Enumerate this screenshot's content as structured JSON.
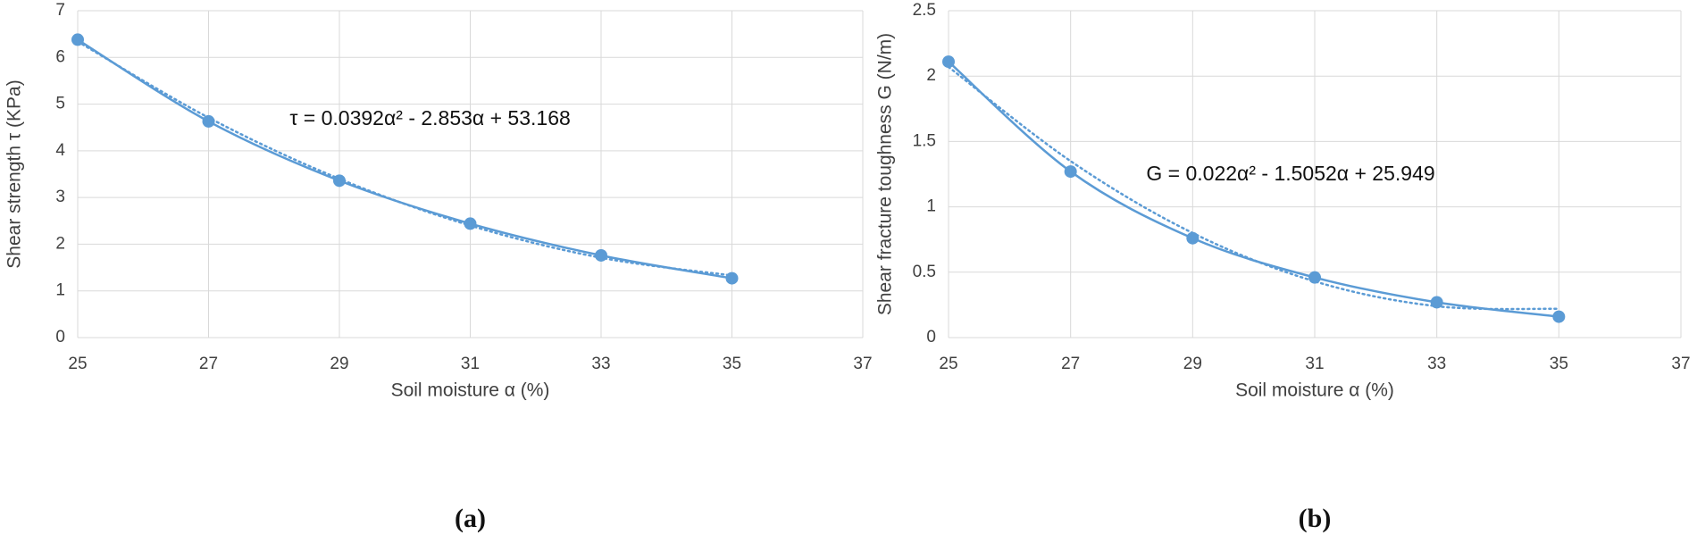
{
  "chart_data": [
    {
      "type": "line",
      "caption": "(a)",
      "x_label": "Soil moisture α (%)",
      "y_label": "Shear strength τ (KPa)",
      "annotation": "τ = 0.0392α² - 2.853α + 53.168",
      "x": [
        25,
        27,
        29,
        31,
        33,
        35
      ],
      "series": [
        {
          "color": "#5b9bd5",
          "values": [
            6.38,
            4.63,
            3.36,
            2.44,
            1.76,
            1.27
          ]
        }
      ],
      "trendline": {
        "style": "dotted",
        "values": [
          6.34,
          4.71,
          3.4,
          2.4,
          1.71,
          1.33
        ]
      },
      "xlim": [
        25,
        37
      ],
      "xticks": [
        25,
        27,
        29,
        31,
        33,
        35,
        37
      ],
      "ylim": [
        0,
        7
      ],
      "yticks": [
        0,
        1,
        2,
        3,
        4,
        5,
        6,
        7
      ],
      "grid": true
    },
    {
      "type": "line",
      "caption": "(b)",
      "x_label": "Soil moisture α (%)",
      "y_label": "Shear fracture toughness G (N/m)",
      "annotation": "G = 0.022α² - 1.5052α + 25.949",
      "x": [
        25,
        27,
        29,
        31,
        33,
        35
      ],
      "series": [
        {
          "color": "#5b9bd5",
          "values": [
            2.11,
            1.27,
            0.76,
            0.46,
            0.27,
            0.16
          ]
        }
      ],
      "trendline": {
        "style": "dotted",
        "values": [
          2.07,
          1.35,
          0.8,
          0.43,
          0.24,
          0.22
        ]
      },
      "xlim": [
        25,
        37
      ],
      "xticks": [
        25,
        27,
        29,
        31,
        33,
        35,
        37
      ],
      "ylim": [
        0,
        2.5
      ],
      "yticks": [
        0,
        0.5,
        1,
        1.5,
        2,
        2.5
      ],
      "grid": true
    }
  ]
}
